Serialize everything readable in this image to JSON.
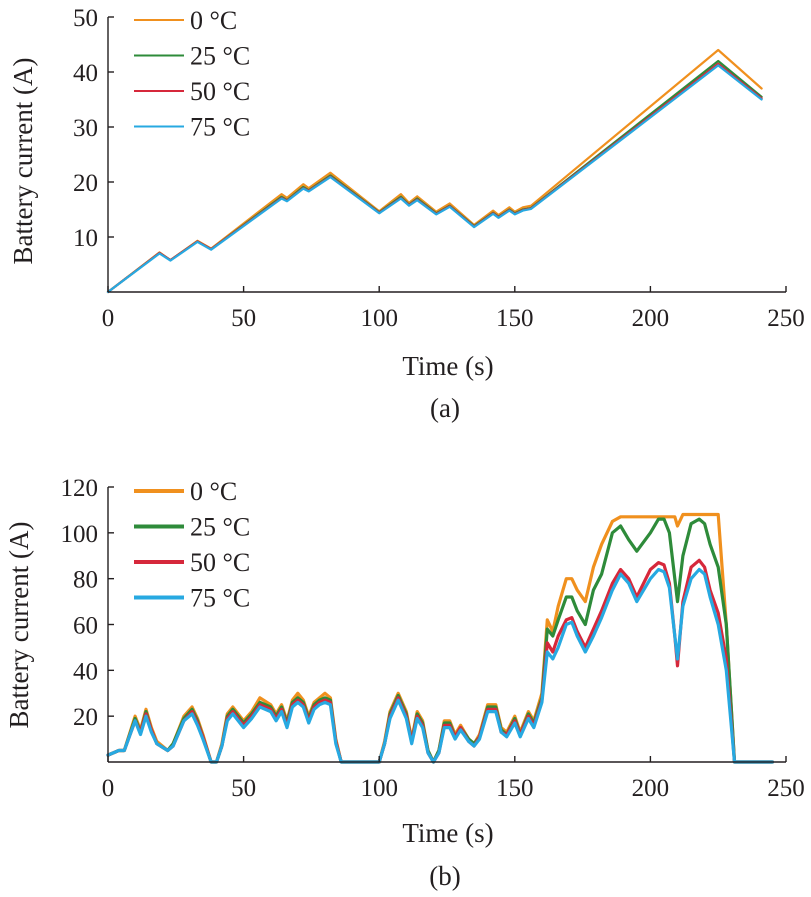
{
  "colors": {
    "0C": "#f0901e",
    "25C": "#2e8b3a",
    "50C": "#d6283b",
    "75C": "#27a9e1",
    "axis": "#231f20"
  },
  "chart_data": [
    {
      "type": "line",
      "caption": "(a)",
      "xlabel": "Time (s)",
      "ylabel": "Battery current (A)",
      "xlim": [
        0,
        250
      ],
      "ylim": [
        0,
        50
      ],
      "xticks": [
        0,
        50,
        100,
        150,
        200,
        250
      ],
      "yticks": [
        10,
        20,
        30,
        40,
        50
      ],
      "legend": {
        "placement": "top-left",
        "labels": [
          "0 °C",
          "25 °C",
          "50 °C",
          "75 °C"
        ]
      },
      "series": [
        {
          "name": "0 °C",
          "color_key": "0C",
          "x": [
            0,
            19,
            23,
            33,
            38,
            64,
            66,
            72,
            74,
            82,
            100,
            108,
            111,
            114,
            121,
            126,
            135,
            142,
            144,
            148,
            150,
            153,
            156,
            225,
            241
          ],
          "y": [
            0,
            7.2,
            5.8,
            9.3,
            7.9,
            17.8,
            17.1,
            19.6,
            18.9,
            21.7,
            14.7,
            17.8,
            16.2,
            17.4,
            14.6,
            16.1,
            12.2,
            14.8,
            14.0,
            15.4,
            14.6,
            15.4,
            15.7,
            44.0,
            37.0
          ]
        },
        {
          "name": "25 °C",
          "color_key": "25C",
          "x": [
            0,
            19,
            23,
            33,
            38,
            64,
            66,
            72,
            74,
            82,
            100,
            108,
            111,
            114,
            121,
            126,
            135,
            142,
            144,
            148,
            150,
            153,
            156,
            225,
            241
          ],
          "y": [
            0,
            7.1,
            5.8,
            9.2,
            7.8,
            17.3,
            16.7,
            19.1,
            18.5,
            21.2,
            14.5,
            17.3,
            15.9,
            17.0,
            14.3,
            15.7,
            12.0,
            14.4,
            13.7,
            15.0,
            14.3,
            15.0,
            15.3,
            42.0,
            35.5
          ]
        },
        {
          "name": "50 °C",
          "color_key": "50C",
          "x": [
            0,
            19,
            23,
            33,
            38,
            64,
            66,
            72,
            74,
            82,
            100,
            108,
            111,
            114,
            121,
            126,
            135,
            142,
            144,
            148,
            150,
            153,
            156,
            225,
            241
          ],
          "y": [
            0,
            7.1,
            5.8,
            9.2,
            7.8,
            17.1,
            16.6,
            18.9,
            18.4,
            21.0,
            14.4,
            17.1,
            15.8,
            16.8,
            14.2,
            15.6,
            11.9,
            14.3,
            13.6,
            14.9,
            14.2,
            14.9,
            15.2,
            41.5,
            35.2
          ]
        },
        {
          "name": "75 °C",
          "color_key": "75C",
          "x": [
            0,
            19,
            23,
            33,
            38,
            64,
            66,
            72,
            74,
            82,
            100,
            108,
            111,
            114,
            121,
            126,
            135,
            142,
            144,
            148,
            150,
            153,
            156,
            225,
            241
          ],
          "y": [
            0,
            7.0,
            5.7,
            9.1,
            7.7,
            17.0,
            16.5,
            18.8,
            18.3,
            20.9,
            14.3,
            17.0,
            15.7,
            16.7,
            14.1,
            15.5,
            11.8,
            14.2,
            13.5,
            14.8,
            14.1,
            14.8,
            15.1,
            41.2,
            35.0
          ]
        }
      ]
    },
    {
      "type": "line",
      "caption": "(b)",
      "xlabel": "Time (s)",
      "ylabel": "Battery current (A)",
      "xlim": [
        0,
        250
      ],
      "ylim": [
        0,
        120
      ],
      "xticks": [
        0,
        50,
        100,
        150,
        200,
        250
      ],
      "yticks": [
        20,
        40,
        60,
        80,
        100,
        120
      ],
      "legend": {
        "placement": "top-left",
        "labels": [
          "0 °C",
          "25 °C",
          "50 °C",
          "75 °C"
        ]
      },
      "series": [
        {
          "name": "0 °C",
          "color_key": "0C",
          "x": [
            0,
            4,
            6,
            10,
            12,
            14,
            16,
            18,
            22,
            24,
            28,
            31,
            33,
            35,
            38,
            40,
            42,
            44,
            46,
            50,
            53,
            56,
            60,
            62,
            64,
            66,
            68,
            70,
            72,
            74,
            76,
            78,
            80,
            82,
            84,
            86,
            90,
            100,
            102,
            104,
            107,
            110,
            112,
            114,
            116,
            118,
            120,
            122,
            124,
            126,
            128,
            130,
            133,
            135,
            137,
            140,
            143,
            145,
            147,
            150,
            152,
            155,
            157,
            160,
            162,
            164,
            166,
            169,
            171,
            173,
            176,
            179,
            182,
            186,
            189,
            192,
            195,
            200,
            203,
            205,
            207,
            209,
            210,
            212,
            215,
            218,
            220,
            222,
            225,
            228,
            231,
            232,
            235,
            240,
            245
          ],
          "y": [
            3,
            5,
            5,
            20,
            14,
            23,
            15,
            9,
            5,
            8,
            20,
            24,
            19,
            12,
            0,
            0,
            8,
            21,
            24,
            18,
            22,
            28,
            25,
            21,
            25,
            18,
            27,
            30,
            27,
            20,
            26,
            28,
            30,
            28,
            10,
            0,
            0,
            0,
            9,
            22,
            30,
            22,
            10,
            22,
            18,
            5,
            0,
            5,
            18,
            18,
            12,
            16,
            10,
            8,
            12,
            25,
            25,
            15,
            13,
            20,
            13,
            22,
            18,
            30,
            62,
            57,
            68,
            80,
            80,
            75,
            70,
            85,
            95,
            105,
            107,
            107,
            107,
            107,
            107,
            107,
            107,
            107,
            103,
            108,
            108,
            108,
            108,
            108,
            108,
            60,
            0,
            0,
            0,
            0,
            0
          ]
        },
        {
          "name": "25 °C",
          "color_key": "25C",
          "x": [
            0,
            4,
            6,
            10,
            12,
            14,
            16,
            18,
            22,
            24,
            28,
            31,
            33,
            35,
            38,
            40,
            42,
            44,
            46,
            50,
            53,
            56,
            60,
            62,
            64,
            66,
            68,
            70,
            72,
            74,
            76,
            78,
            80,
            82,
            84,
            86,
            90,
            100,
            102,
            104,
            107,
            110,
            112,
            114,
            116,
            118,
            120,
            122,
            124,
            126,
            128,
            130,
            133,
            135,
            137,
            140,
            143,
            145,
            147,
            150,
            152,
            155,
            157,
            160,
            162,
            164,
            166,
            169,
            171,
            173,
            176,
            179,
            182,
            186,
            189,
            192,
            195,
            200,
            203,
            205,
            207,
            209,
            210,
            212,
            215,
            218,
            220,
            222,
            225,
            228,
            231,
            232,
            235,
            240,
            245
          ],
          "y": [
            3,
            5,
            5,
            19,
            13,
            22,
            14,
            8,
            5,
            8,
            19,
            23,
            18,
            11,
            0,
            0,
            7,
            20,
            23,
            17,
            21,
            26,
            24,
            20,
            24,
            17,
            26,
            28,
            26,
            19,
            25,
            27,
            28,
            27,
            9,
            0,
            0,
            0,
            8,
            21,
            29,
            21,
            9,
            21,
            17,
            5,
            0,
            5,
            17,
            17,
            11,
            15,
            10,
            8,
            11,
            24,
            24,
            14,
            12,
            19,
            12,
            21,
            17,
            28,
            58,
            55,
            62,
            72,
            72,
            66,
            60,
            75,
            82,
            100,
            103,
            97,
            92,
            100,
            106,
            106,
            100,
            80,
            70,
            90,
            104,
            106,
            104,
            95,
            85,
            60,
            0,
            0,
            0,
            0,
            0
          ]
        },
        {
          "name": "50 °C",
          "color_key": "50C",
          "x": [
            0,
            4,
            6,
            10,
            12,
            14,
            16,
            18,
            22,
            24,
            28,
            31,
            33,
            35,
            38,
            40,
            42,
            44,
            46,
            50,
            53,
            56,
            60,
            62,
            64,
            66,
            68,
            70,
            72,
            74,
            76,
            78,
            80,
            82,
            84,
            86,
            90,
            100,
            102,
            104,
            107,
            110,
            112,
            114,
            116,
            118,
            120,
            122,
            124,
            126,
            128,
            130,
            133,
            135,
            137,
            140,
            143,
            145,
            147,
            150,
            152,
            155,
            157,
            160,
            162,
            164,
            166,
            169,
            171,
            173,
            176,
            179,
            182,
            186,
            189,
            192,
            195,
            200,
            203,
            205,
            207,
            209,
            210,
            212,
            215,
            218,
            220,
            222,
            225,
            228,
            231,
            232,
            235,
            240,
            245
          ],
          "y": [
            3,
            5,
            5,
            18,
            13,
            21,
            14,
            8,
            5,
            7,
            18,
            22,
            17,
            11,
            0,
            0,
            7,
            19,
            22,
            16,
            20,
            25,
            23,
            19,
            23,
            16,
            25,
            27,
            25,
            18,
            24,
            26,
            27,
            26,
            9,
            0,
            0,
            0,
            8,
            20,
            28,
            20,
            9,
            20,
            16,
            4,
            0,
            4,
            16,
            16,
            11,
            15,
            9,
            7,
            11,
            23,
            23,
            13,
            12,
            18,
            12,
            20,
            16,
            27,
            52,
            48,
            55,
            62,
            63,
            57,
            50,
            58,
            66,
            78,
            84,
            80,
            72,
            84,
            87,
            86,
            78,
            55,
            42,
            70,
            85,
            88,
            85,
            75,
            65,
            45,
            0,
            0,
            0,
            0,
            0
          ]
        },
        {
          "name": "75 °C",
          "color_key": "75C",
          "x": [
            0,
            4,
            6,
            10,
            12,
            14,
            16,
            18,
            22,
            24,
            28,
            31,
            33,
            35,
            38,
            40,
            42,
            44,
            46,
            50,
            53,
            56,
            60,
            62,
            64,
            66,
            68,
            70,
            72,
            74,
            76,
            78,
            80,
            82,
            84,
            86,
            90,
            100,
            102,
            104,
            107,
            110,
            112,
            114,
            116,
            118,
            120,
            122,
            124,
            126,
            128,
            130,
            133,
            135,
            137,
            140,
            143,
            145,
            147,
            150,
            152,
            155,
            157,
            160,
            162,
            164,
            166,
            169,
            171,
            173,
            176,
            179,
            182,
            186,
            189,
            192,
            195,
            200,
            203,
            205,
            207,
            209,
            210,
            212,
            215,
            218,
            220,
            222,
            225,
            228,
            231,
            232,
            235,
            240,
            245
          ],
          "y": [
            3,
            5,
            5,
            18,
            12,
            20,
            13,
            8,
            5,
            7,
            18,
            21,
            16,
            10,
            0,
            0,
            7,
            18,
            21,
            15,
            19,
            24,
            22,
            18,
            22,
            15,
            24,
            26,
            24,
            17,
            23,
            25,
            26,
            25,
            8,
            0,
            0,
            0,
            8,
            19,
            27,
            19,
            8,
            19,
            15,
            4,
            0,
            4,
            15,
            15,
            10,
            14,
            9,
            7,
            10,
            22,
            22,
            13,
            11,
            17,
            11,
            19,
            15,
            26,
            48,
            45,
            50,
            60,
            61,
            55,
            48,
            55,
            63,
            75,
            82,
            78,
            70,
            80,
            84,
            83,
            76,
            55,
            45,
            68,
            80,
            84,
            82,
            72,
            60,
            40,
            0,
            0,
            0,
            0,
            0
          ]
        }
      ]
    }
  ]
}
